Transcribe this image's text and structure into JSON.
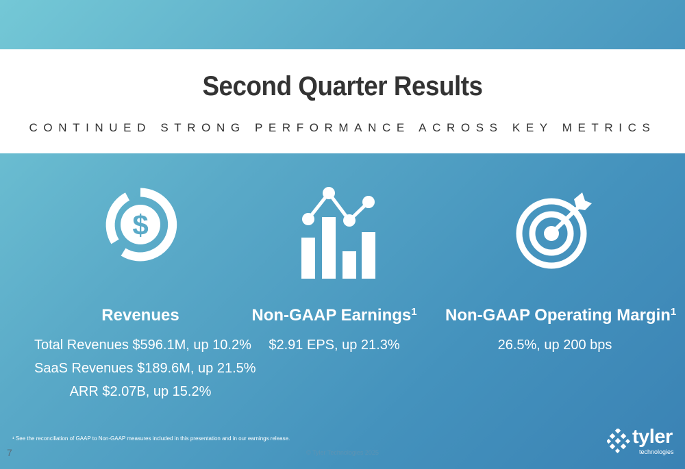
{
  "slide": {
    "title": "Second Quarter Results",
    "subtitle": "CONTINUED STRONG PERFORMANCE ACROSS KEY METRICS",
    "page_number": "7",
    "copyright": "© Tyler Technologies 2025",
    "footnote": "¹ See the reconciliation of GAAP to Non-GAAP measures included in this presentation and in our earnings release."
  },
  "metrics": [
    {
      "icon": "dollar-circle-icon",
      "heading": "Revenues",
      "superscript": "",
      "lines": [
        "Total Revenues $596.1M, up 10.2%",
        "SaaS Revenues $189.6M, up 21.5%",
        "ARR $2.07B, up 15.2%"
      ]
    },
    {
      "icon": "bar-line-chart-icon",
      "heading": "Non-GAAP Earnings",
      "superscript": "1",
      "lines": [
        "$2.91 EPS, up 21.3%"
      ]
    },
    {
      "icon": "target-arrow-icon",
      "heading": "Non-GAAP Operating Margin",
      "superscript": "1",
      "lines": [
        "26.5%, up 200 bps"
      ]
    }
  ],
  "logo": {
    "word": "tyler",
    "sub": "technologies"
  },
  "colors": {
    "background_start": "#74c8d6",
    "background_end": "#3a82b4",
    "title": "#333333",
    "band": "#ffffff"
  }
}
